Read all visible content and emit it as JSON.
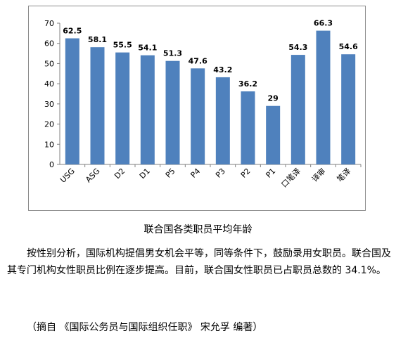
{
  "colors": {
    "bar": "#4f81bd",
    "axis": "#808080",
    "frame": "#8c8c8c"
  },
  "chart_data": {
    "type": "bar",
    "title": "",
    "xlabel": "",
    "ylabel": "",
    "categories": [
      "USG",
      "ASG",
      "D2",
      "D1",
      "P5",
      "P4",
      "P3",
      "P2",
      "P1",
      "口笔译",
      "译审",
      "笔译"
    ],
    "values": [
      62.5,
      58.1,
      55.5,
      54.1,
      51.3,
      47.6,
      43.2,
      36.2,
      29,
      54.3,
      66.3,
      54.6
    ],
    "value_labels": [
      "62.5",
      "58.1",
      "55.5",
      "54.1",
      "51.3",
      "47.6",
      "43.2",
      "36.2",
      "29",
      "54.3",
      "66.3",
      "54.6"
    ],
    "ylim": [
      0,
      70
    ],
    "yticks": [
      "0",
      "10",
      "20",
      "30",
      "40",
      "50",
      "60",
      "70"
    ],
    "grid": false,
    "legend": "none"
  },
  "caption": "联合国各类职员平均年龄",
  "paragraph": "按性别分析，国际机构提倡男女机会平等，同等条件下，鼓励录用女职员。联合国及其专门机构女性职员比例在逐步提高。目前，联合国女性职员已占职员总数的 34.1%。",
  "source_note": "（摘自 《国际公务员与国际组织任职》 宋允孚 编著）"
}
